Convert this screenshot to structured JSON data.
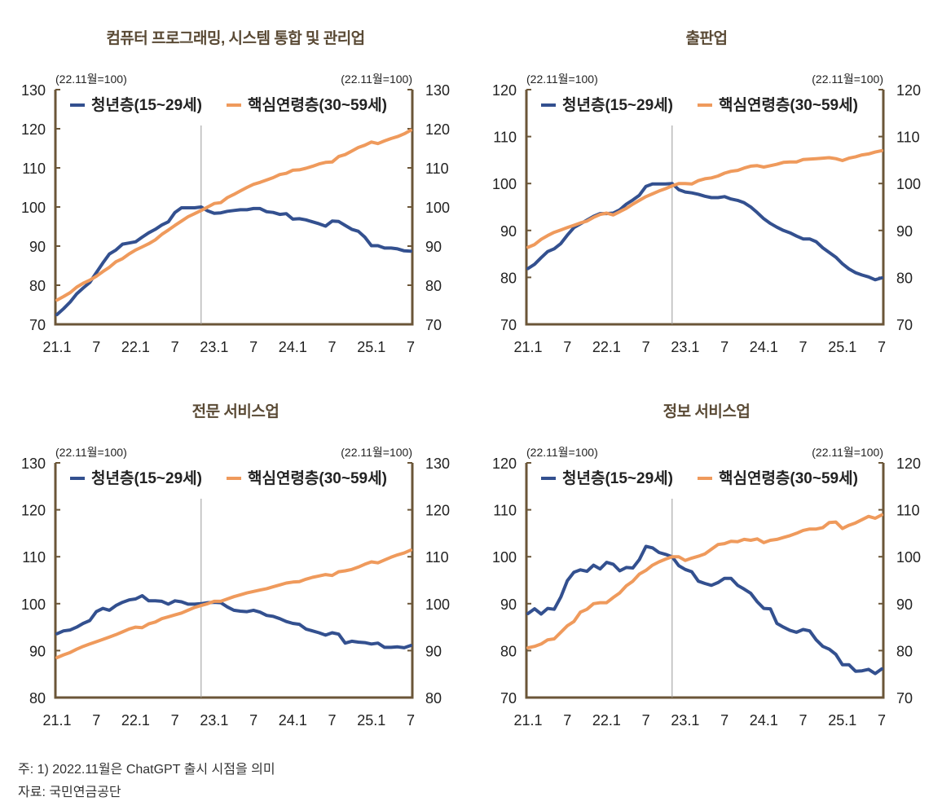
{
  "footnotes": {
    "note": "주: 1) 2022.11월은 ChatGPT 출시 시점을 의미",
    "source": "자료: 국민연금공단"
  },
  "colors": {
    "youth": "#33508f",
    "core": "#ef9a5c",
    "axis": "#6b5638",
    "marker": "#999999",
    "title": "#5a4a35"
  },
  "chart_data": [
    {
      "type": "line",
      "title": "컴퓨터 프로그래밍, 시스템 통합 및 관리업",
      "unit_left": "(22.11월=100)",
      "unit_right": "(22.11월=100)",
      "ylim": [
        70,
        130
      ],
      "yticks": [
        70,
        80,
        90,
        100,
        110,
        120,
        130
      ],
      "xtick_labels": [
        "21.1",
        "7",
        "22.1",
        "7",
        "23.1",
        "7",
        "24.1",
        "7",
        "25.1",
        "7"
      ],
      "x_start": "2021.1",
      "x_end": "2025.7",
      "marker": "2022.11",
      "legend": [
        "청년층(15~29세)",
        "핵심연령층(30~59세)"
      ],
      "series": [
        {
          "name": "청년층(15~29세)",
          "values": [
            72.5,
            74.0,
            75.7,
            77.8,
            79.3,
            80.7,
            83.2,
            85.7,
            88.0,
            89.0,
            90.5,
            90.8,
            91.1,
            92.3,
            93.4,
            94.3,
            95.4,
            96.2,
            98.6,
            99.8,
            99.8,
            99.8,
            100.0,
            99.0,
            98.4,
            98.5,
            98.9,
            99.1,
            99.3,
            99.3,
            99.6,
            99.6,
            98.8,
            98.6,
            98.1,
            98.3,
            96.9,
            97.0,
            96.7,
            96.2,
            95.7,
            95.1,
            96.4,
            96.3,
            95.3,
            94.3,
            93.8,
            92.3,
            90.1,
            90.1,
            89.5,
            89.5,
            89.3,
            88.8,
            88.7
          ]
        },
        {
          "name": "핵심연령층(30~59세)",
          "values": [
            76.2,
            77.1,
            78.1,
            79.5,
            80.5,
            81.3,
            82.3,
            83.5,
            84.6,
            86.0,
            86.8,
            88.0,
            89.0,
            89.8,
            90.6,
            91.6,
            93.0,
            94.1,
            95.3,
            96.4,
            97.5,
            98.3,
            99.1,
            100.0,
            100.9,
            101.1,
            102.4,
            103.2,
            104.1,
            105.0,
            105.8,
            106.3,
            106.9,
            107.5,
            108.3,
            108.6,
            109.4,
            109.5,
            109.9,
            110.4,
            111.0,
            111.4,
            111.5,
            112.9,
            113.4,
            114.3,
            115.2,
            115.8,
            116.6,
            116.2,
            116.9,
            117.5,
            118.0,
            118.7,
            119.6
          ]
        }
      ]
    },
    {
      "type": "line",
      "title": "출판업",
      "unit_left": "(22.11월=100)",
      "unit_right": "(22.11월=100)",
      "ylim": [
        70,
        120
      ],
      "yticks": [
        70,
        80,
        90,
        100,
        110,
        120
      ],
      "xtick_labels": [
        "21.1",
        "7",
        "22.1",
        "7",
        "23.1",
        "7",
        "24.1",
        "7",
        "25.1",
        "7"
      ],
      "x_start": "2021.1",
      "x_end": "2025.7",
      "marker": "2022.11",
      "legend": [
        "청년층(15~29세)",
        "핵심연령층(30~59세)"
      ],
      "series": [
        {
          "name": "청년층(15~29세)",
          "values": [
            81.9,
            82.8,
            84.2,
            85.5,
            86.1,
            87.2,
            89.0,
            90.6,
            91.4,
            92.2,
            93.0,
            93.6,
            93.6,
            93.7,
            94.4,
            95.6,
            96.5,
            97.5,
            99.4,
            99.9,
            99.9,
            99.9,
            100.0,
            98.7,
            98.2,
            98.0,
            97.7,
            97.3,
            97.0,
            97.0,
            97.2,
            96.7,
            96.4,
            95.9,
            95.0,
            93.8,
            92.5,
            91.5,
            90.7,
            90.0,
            89.5,
            88.8,
            88.2,
            88.2,
            87.6,
            86.3,
            85.3,
            84.3,
            82.9,
            81.8,
            81.0,
            80.5,
            80.1,
            79.5,
            79.9
          ]
        },
        {
          "name": "핵심연령층(30~59세)",
          "values": [
            86.4,
            87.0,
            88.1,
            88.9,
            89.6,
            90.1,
            90.6,
            91.1,
            91.6,
            92.0,
            92.8,
            93.4,
            93.7,
            93.3,
            94.0,
            94.7,
            95.6,
            96.4,
            97.2,
            97.8,
            98.4,
            98.9,
            99.5,
            100.0,
            100.0,
            99.9,
            100.6,
            101.0,
            101.2,
            101.6,
            102.2,
            102.6,
            102.8,
            103.3,
            103.7,
            103.8,
            103.5,
            103.8,
            104.1,
            104.5,
            104.6,
            104.6,
            105.1,
            105.2,
            105.3,
            105.4,
            105.5,
            105.3,
            104.9,
            105.4,
            105.7,
            106.1,
            106.3,
            106.7,
            107.0
          ]
        }
      ]
    },
    {
      "type": "line",
      "title": "전문 서비스업",
      "unit_left": "(22.11월=100)",
      "unit_right": "(22.11월=100)",
      "ylim": [
        80,
        130
      ],
      "yticks": [
        80,
        90,
        100,
        110,
        120,
        130
      ],
      "xtick_labels": [
        "21.1",
        "7",
        "22.1",
        "7",
        "23.1",
        "7",
        "24.1",
        "7",
        "25.1",
        "7"
      ],
      "x_start": "2021.1",
      "x_end": "2025.7",
      "marker": "2022.11",
      "legend": [
        "청년층(15~29세)",
        "핵심연령층(30~59세)"
      ],
      "series": [
        {
          "name": "청년층(15~29세)",
          "values": [
            93.6,
            94.2,
            94.4,
            95.0,
            95.8,
            96.4,
            98.3,
            99.0,
            98.6,
            99.6,
            100.3,
            100.8,
            101.0,
            101.7,
            100.6,
            100.6,
            100.5,
            99.9,
            100.6,
            100.4,
            99.9,
            99.9,
            100.0,
            100.2,
            100.3,
            100.2,
            99.3,
            98.6,
            98.4,
            98.3,
            98.6,
            98.2,
            97.5,
            97.3,
            96.8,
            96.2,
            95.8,
            95.6,
            94.6,
            94.2,
            93.8,
            93.3,
            93.8,
            93.5,
            91.6,
            92.0,
            91.8,
            91.7,
            91.4,
            91.6,
            90.7,
            90.7,
            90.8,
            90.6,
            91.1
          ]
        },
        {
          "name": "핵심연령층(30~59세)",
          "values": [
            88.5,
            89.1,
            89.6,
            90.3,
            90.9,
            91.4,
            91.9,
            92.4,
            92.9,
            93.4,
            94.0,
            94.6,
            95.0,
            94.9,
            95.7,
            96.1,
            96.8,
            97.2,
            97.6,
            98.0,
            98.6,
            99.2,
            99.6,
            100.0,
            100.5,
            100.5,
            101.0,
            101.5,
            101.9,
            102.3,
            102.6,
            102.9,
            103.2,
            103.6,
            104.0,
            104.4,
            104.6,
            104.7,
            105.2,
            105.6,
            105.9,
            106.2,
            106.0,
            106.8,
            107.0,
            107.3,
            107.8,
            108.4,
            108.9,
            108.7,
            109.3,
            109.9,
            110.4,
            110.8,
            111.4
          ]
        }
      ]
    },
    {
      "type": "line",
      "title": "정보 서비스업",
      "unit_left": "(22.11월=100)",
      "unit_right": "(22.11월=100)",
      "ylim": [
        70,
        120
      ],
      "yticks": [
        70,
        80,
        90,
        100,
        110,
        120
      ],
      "xtick_labels": [
        "21.1",
        "7",
        "22.1",
        "7",
        "23.1",
        "7",
        "24.1",
        "7",
        "25.1",
        "7"
      ],
      "x_start": "2021.1",
      "x_end": "2025.7",
      "marker": "2022.11",
      "legend": [
        "청년층(15~29세)",
        "핵심연령층(30~59세)"
      ],
      "series": [
        {
          "name": "청년층(15~29세)",
          "values": [
            87.9,
            88.9,
            87.8,
            89.0,
            88.8,
            91.4,
            94.9,
            96.7,
            97.2,
            96.9,
            98.2,
            97.4,
            98.8,
            98.4,
            97.0,
            97.7,
            97.6,
            99.4,
            102.2,
            101.9,
            100.9,
            100.5,
            100.0,
            98.1,
            97.3,
            96.8,
            94.8,
            94.3,
            93.9,
            94.5,
            95.4,
            95.4,
            93.9,
            93.1,
            92.2,
            90.4,
            89.0,
            88.9,
            85.8,
            85.0,
            84.3,
            83.9,
            84.5,
            84.2,
            82.3,
            80.9,
            80.3,
            79.2,
            77.0,
            77.0,
            75.6,
            75.7,
            76.0,
            75.1,
            76.1
          ]
        },
        {
          "name": "핵심연령층(30~59세)",
          "values": [
            80.6,
            80.9,
            81.4,
            82.3,
            82.5,
            83.9,
            85.3,
            86.2,
            88.2,
            88.8,
            90.0,
            90.2,
            90.2,
            91.3,
            92.3,
            93.8,
            94.8,
            96.3,
            97.1,
            98.2,
            98.9,
            99.5,
            100.0,
            100.0,
            99.2,
            99.7,
            100.1,
            100.6,
            101.6,
            102.6,
            102.8,
            103.3,
            103.2,
            103.7,
            103.5,
            103.8,
            103.0,
            103.5,
            103.7,
            104.1,
            104.5,
            105.0,
            105.6,
            105.9,
            105.9,
            106.2,
            107.3,
            107.4,
            106.0,
            106.7,
            107.2,
            107.9,
            108.6,
            108.2,
            108.9
          ]
        }
      ]
    }
  ]
}
